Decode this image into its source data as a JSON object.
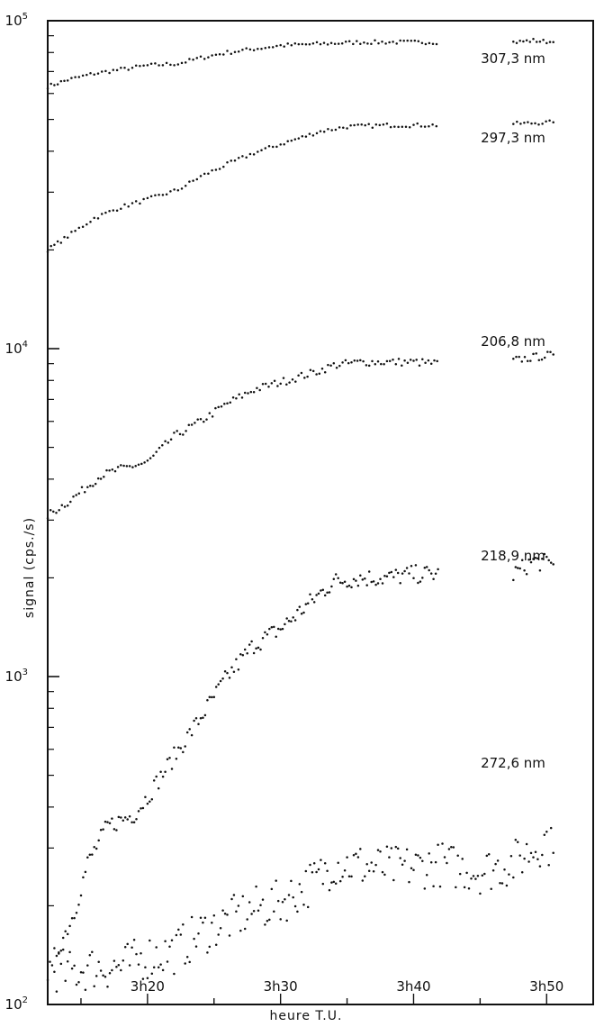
{
  "chart_data": {
    "type": "scatter",
    "title": "",
    "xlabel": "heure T.U.",
    "ylabel": "signal (cps./s)",
    "x_unit": "minutes after 3h00 UT",
    "xlim": [
      12.5,
      53.5
    ],
    "ylim": [
      100,
      100000
    ],
    "y_scale": "log",
    "grid": false,
    "x_ticks": [
      {
        "value": 20,
        "label": "3h20"
      },
      {
        "value": 30,
        "label": "3h30"
      },
      {
        "value": 40,
        "label": "3h40"
      },
      {
        "value": 50,
        "label": "3h50"
      }
    ],
    "y_ticks": [
      {
        "value": 100,
        "base": "10",
        "exp": "2"
      },
      {
        "value": 1000,
        "base": "10",
        "exp": "3"
      },
      {
        "value": 10000,
        "base": "10",
        "exp": "4"
      },
      {
        "value": 100000,
        "base": "10",
        "exp": "5"
      }
    ],
    "series": [
      {
        "name": "307,3 nm",
        "points": [
          [
            12.5,
            63000
          ],
          [
            14,
            66000
          ],
          [
            16,
            69000
          ],
          [
            18,
            71000
          ],
          [
            20,
            73000
          ],
          [
            22.3,
            74000
          ],
          [
            24,
            77000
          ],
          [
            26,
            80000
          ],
          [
            28,
            82000
          ],
          [
            30,
            84000
          ],
          [
            33,
            85000
          ],
          [
            36,
            86000
          ],
          [
            39,
            86000
          ],
          [
            42,
            86000
          ],
          [
            47.5,
            86000
          ],
          [
            49,
            87000
          ],
          [
            50.5,
            86000
          ]
        ],
        "scatter": 0.006,
        "density": 4
      },
      {
        "name": "297,3 nm",
        "points": [
          [
            12.5,
            20000
          ],
          [
            14,
            22000
          ],
          [
            16,
            25000
          ],
          [
            18,
            27000
          ],
          [
            20,
            28500
          ],
          [
            22.3,
            30500
          ],
          [
            24,
            33500
          ],
          [
            26,
            36500
          ],
          [
            28,
            39500
          ],
          [
            30,
            42000
          ],
          [
            33,
            46000
          ],
          [
            35,
            47500
          ],
          [
            38,
            48000
          ],
          [
            40,
            48000
          ],
          [
            42,
            48000
          ],
          [
            47.5,
            48500
          ],
          [
            50.5,
            49000
          ]
        ],
        "scatter": 0.006,
        "density": 4
      },
      {
        "name": "206,8 nm",
        "points": [
          [
            12.5,
            3100
          ],
          [
            14,
            3400
          ],
          [
            15.5,
            3800
          ],
          [
            16.5,
            4100
          ],
          [
            18,
            4300
          ],
          [
            20,
            4500
          ],
          [
            22,
            5400
          ],
          [
            24,
            6000
          ],
          [
            26,
            6800
          ],
          [
            28,
            7500
          ],
          [
            30,
            7900
          ],
          [
            32.7,
            8500
          ],
          [
            34,
            8900
          ],
          [
            36,
            9100
          ],
          [
            38,
            9100
          ],
          [
            40,
            9100
          ],
          [
            42,
            9000
          ],
          [
            47.5,
            9200
          ],
          [
            50.5,
            9600
          ]
        ],
        "scatter": 0.012,
        "density": 3.2
      },
      {
        "name": "218,9 nm",
        "points": [
          [
            13,
            140
          ],
          [
            14.5,
            190
          ],
          [
            15.5,
            270
          ],
          [
            17,
            350
          ],
          [
            19,
            380
          ],
          [
            20,
            430
          ],
          [
            22,
            570
          ],
          [
            24,
            750
          ],
          [
            26,
            1000
          ],
          [
            28,
            1250
          ],
          [
            30,
            1400
          ],
          [
            32.7,
            1750
          ],
          [
            34,
            1950
          ],
          [
            36,
            2000
          ],
          [
            38,
            2000
          ],
          [
            40,
            2050
          ],
          [
            42,
            2050
          ],
          [
            47.5,
            2050
          ],
          [
            49,
            2250
          ],
          [
            50.5,
            2200
          ]
        ],
        "scatter": 0.028,
        "density": 2.4
      },
      {
        "name": "272,6 nm",
        "points": [
          [
            12.5,
            130
          ],
          [
            14,
            125
          ],
          [
            16,
            130
          ],
          [
            18,
            130
          ],
          [
            20,
            140
          ],
          [
            22,
            145
          ],
          [
            24,
            165
          ],
          [
            26,
            180
          ],
          [
            28,
            195
          ],
          [
            30,
            205
          ],
          [
            32.7,
            240
          ],
          [
            34,
            270
          ],
          [
            36,
            265
          ],
          [
            38,
            260
          ],
          [
            40,
            262
          ],
          [
            42,
            268
          ],
          [
            45,
            255
          ],
          [
            47.5,
            270
          ],
          [
            50,
            320
          ],
          [
            50.5,
            290
          ]
        ],
        "scatter": 0.07,
        "density": 2.4
      }
    ]
  }
}
